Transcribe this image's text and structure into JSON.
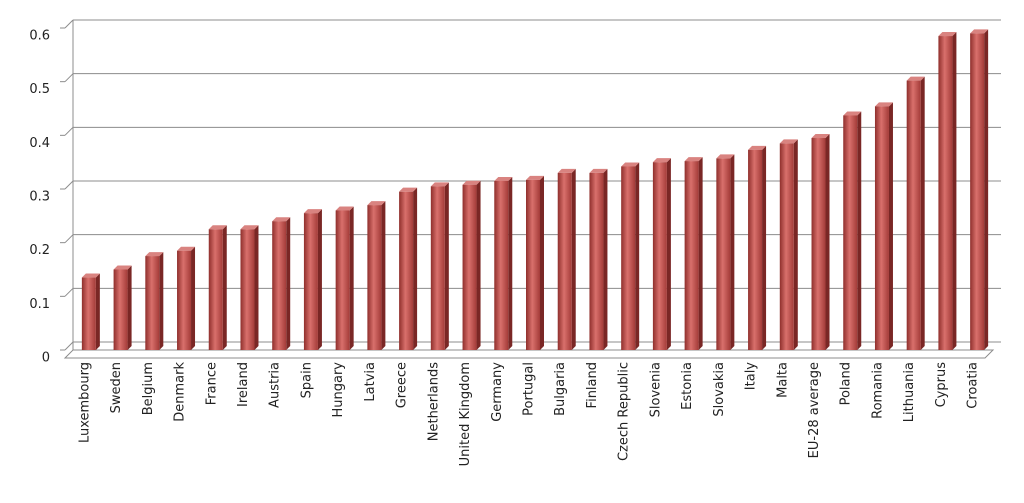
{
  "chart_data": {
    "type": "bar",
    "categories": [
      "Luxembourg",
      "Sweden",
      "Belgium",
      "Denmark",
      "France",
      "Ireland",
      "Austria",
      "Spain",
      "Hungary",
      "Latvia",
      "Greece",
      "Netherlands",
      "United Kingdom",
      "Germany",
      "Portugal",
      "Bulgaria",
      "Finland",
      "Czech Republic",
      "Slovenia",
      "Estonia",
      "Slovakia",
      "Italy",
      "Malta",
      "EU-28 average",
      "Poland",
      "Romania",
      "Lithuania",
      "Cyprus",
      "Croatia"
    ],
    "values": [
      0.135,
      0.15,
      0.175,
      0.185,
      0.225,
      0.225,
      0.24,
      0.255,
      0.26,
      0.27,
      0.295,
      0.305,
      0.308,
      0.315,
      0.317,
      0.33,
      0.33,
      0.342,
      0.35,
      0.352,
      0.357,
      0.373,
      0.385,
      0.395,
      0.437,
      0.454,
      0.502,
      0.585,
      0.59
    ],
    "color": "#c0504d",
    "ylim": [
      0,
      0.6
    ],
    "yticks": [
      0,
      0.1,
      0.2,
      0.3,
      0.4,
      0.5,
      0.6
    ],
    "grid": true
  }
}
